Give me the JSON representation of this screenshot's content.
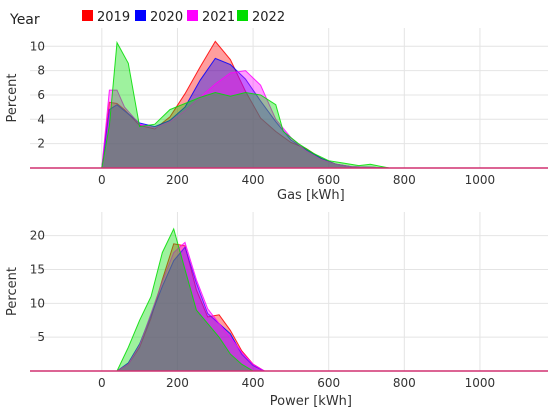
{
  "legend": {
    "title": "Year",
    "items": [
      {
        "label": "2019",
        "color": "#ff0000"
      },
      {
        "label": "2020",
        "color": "#0000ff"
      },
      {
        "label": "2021",
        "color": "#ff00ff"
      },
      {
        "label": "2022",
        "color": "#00dd00"
      }
    ]
  },
  "chart_data": [
    {
      "type": "area",
      "xlabel": "Gas [kWh]",
      "ylabel": "Percent",
      "xlim": [
        -190,
        1180
      ],
      "ylim": [
        0,
        11.5
      ],
      "xticks": [
        0,
        200,
        400,
        600,
        800,
        1000
      ],
      "yticks": [
        2,
        4,
        6,
        8,
        10
      ],
      "grid": true,
      "series": [
        {
          "name": "2019",
          "color": "#ff0000",
          "x": [
            0,
            20,
            40,
            60,
            100,
            140,
            180,
            220,
            260,
            300,
            340,
            380,
            420,
            460,
            500,
            540,
            580,
            620,
            660,
            720,
            760,
            1180
          ],
          "y": [
            0,
            5.4,
            5.3,
            4.8,
            3.5,
            3.2,
            4.2,
            6.1,
            8.3,
            10.4,
            8.9,
            6.3,
            4.1,
            3.0,
            2.1,
            1.6,
            0.8,
            0.3,
            0.1,
            0.05,
            0,
            0
          ]
        },
        {
          "name": "2020",
          "color": "#0000ff",
          "x": [
            0,
            20,
            40,
            60,
            100,
            140,
            180,
            220,
            260,
            300,
            340,
            380,
            420,
            460,
            500,
            540,
            580,
            620,
            660,
            720,
            760,
            1180
          ],
          "y": [
            0,
            4.8,
            5.2,
            4.7,
            3.7,
            3.4,
            3.9,
            5.0,
            7.2,
            9.0,
            8.5,
            7.3,
            5.5,
            3.8,
            2.3,
            1.5,
            0.8,
            0.3,
            0.1,
            0.05,
            0,
            0
          ]
        },
        {
          "name": "2021",
          "color": "#ff00ff",
          "x": [
            0,
            20,
            40,
            60,
            100,
            140,
            180,
            220,
            260,
            300,
            340,
            380,
            420,
            460,
            500,
            540,
            580,
            620,
            660,
            720,
            760,
            1180
          ],
          "y": [
            0,
            6.4,
            6.4,
            5.0,
            3.6,
            3.3,
            3.8,
            4.7,
            5.8,
            6.9,
            7.8,
            8.0,
            6.8,
            4.0,
            2.5,
            1.4,
            0.7,
            0.3,
            0.1,
            0.05,
            0,
            0
          ]
        },
        {
          "name": "2022",
          "color": "#00dd00",
          "x": [
            0,
            20,
            40,
            70,
            100,
            140,
            180,
            220,
            260,
            300,
            340,
            380,
            420,
            460,
            480,
            520,
            560,
            600,
            640,
            680,
            710,
            760,
            1180
          ],
          "y": [
            0,
            3.5,
            10.3,
            8.6,
            3.4,
            3.6,
            4.8,
            5.3,
            5.8,
            6.2,
            5.9,
            6.2,
            6.0,
            5.2,
            3.0,
            2.0,
            1.2,
            0.6,
            0.4,
            0.2,
            0.3,
            0,
            0
          ]
        }
      ]
    },
    {
      "type": "area",
      "xlabel": "Power [kWh]",
      "ylabel": "Percent",
      "xlim": [
        -190,
        1180
      ],
      "ylim": [
        0,
        23.5
      ],
      "xticks": [
        0,
        200,
        400,
        600,
        800,
        1000
      ],
      "yticks": [
        5,
        10,
        15,
        20
      ],
      "grid": true,
      "series": [
        {
          "name": "2019",
          "color": "#ff0000",
          "x": [
            40,
            70,
            100,
            130,
            160,
            190,
            220,
            250,
            280,
            310,
            340,
            370,
            400,
            430,
            1180
          ],
          "y": [
            0,
            1.0,
            3.5,
            7.8,
            13.5,
            18.8,
            18.5,
            12.0,
            8.0,
            8.3,
            6.0,
            3.0,
            1.0,
            0,
            0
          ]
        },
        {
          "name": "2020",
          "color": "#0000ff",
          "x": [
            40,
            70,
            100,
            130,
            160,
            190,
            220,
            250,
            280,
            310,
            340,
            370,
            400,
            430,
            1180
          ],
          "y": [
            0,
            1.2,
            4.0,
            8.2,
            12.5,
            16.3,
            18.3,
            13.0,
            8.5,
            7.0,
            5.5,
            2.5,
            0.8,
            0,
            0
          ]
        },
        {
          "name": "2021",
          "color": "#ff00ff",
          "x": [
            40,
            70,
            100,
            130,
            160,
            190,
            220,
            250,
            280,
            310,
            340,
            370,
            400,
            430,
            1180
          ],
          "y": [
            0,
            1.0,
            3.8,
            8.5,
            13.2,
            17.5,
            19.0,
            13.5,
            9.2,
            7.0,
            5.0,
            2.8,
            1.0,
            0,
            0
          ]
        },
        {
          "name": "2022",
          "color": "#00dd00",
          "x": [
            40,
            70,
            100,
            130,
            160,
            190,
            220,
            250,
            280,
            310,
            340,
            370,
            400,
            1180
          ],
          "y": [
            0,
            3.5,
            7.5,
            11.0,
            17.5,
            21.0,
            15.0,
            9.0,
            7.0,
            5.0,
            2.5,
            1.0,
            0,
            0
          ]
        }
      ]
    }
  ]
}
